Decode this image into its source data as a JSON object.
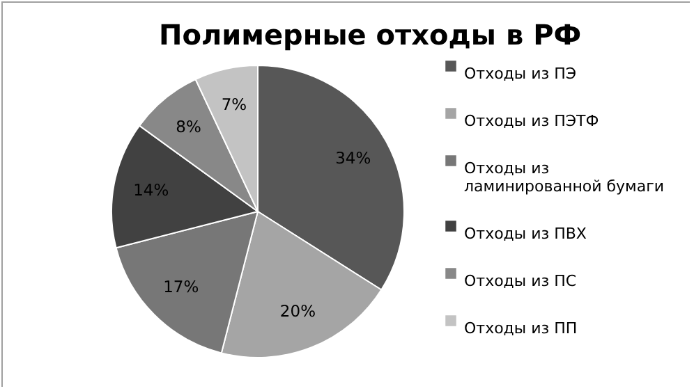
{
  "chart_data": {
    "type": "pie",
    "title": "Полимерные отходы в РФ",
    "categories": [
      "Отходы из ПЭ",
      "Отходы из ПЭТФ",
      "Отходы из ламинированной бумаги",
      "Отходы из ПВХ",
      "Отходы из ПС",
      "Отходы из ПП"
    ],
    "values": [
      34,
      20,
      17,
      14,
      8,
      7
    ],
    "value_labels": [
      "34%",
      "20%",
      "17%",
      "14%",
      "8%",
      "7%"
    ],
    "colors": [
      "#575757",
      "#a5a5a5",
      "#777777",
      "#414141",
      "#888888",
      "#c3c3c3"
    ],
    "legend": "right"
  }
}
